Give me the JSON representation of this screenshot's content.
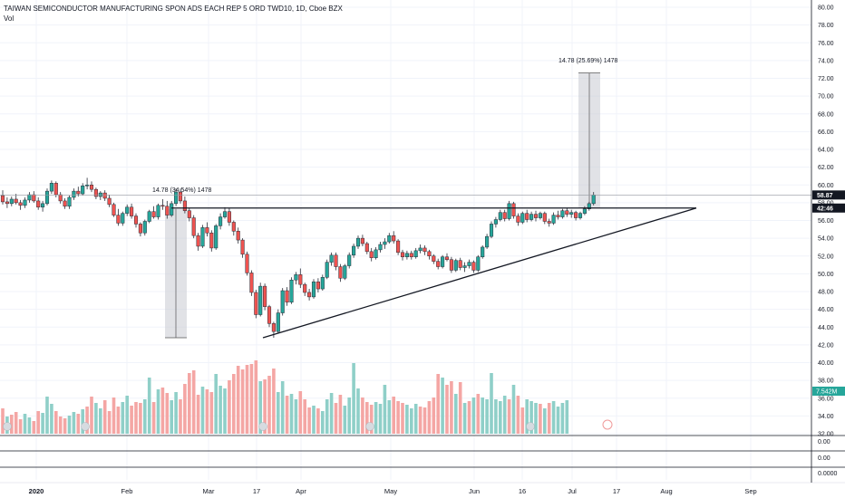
{
  "header": {
    "title": "TAIWAN SEMICONDUCTOR MANUFACTURING SPON ADS EACH REP 5 ORD TWD10, 1D, Cboe BZX",
    "vol_label": "Vol"
  },
  "colors": {
    "up": "#26a69a",
    "down": "#ef5350",
    "up_vol": "#8fcfc8",
    "down_vol": "#f4a6a4",
    "grid": "#f0f3fa",
    "box": "#c8cbd2",
    "dark": "#131722"
  },
  "chart_data": {
    "type": "candlestick",
    "title": "TAIWAN SEMICONDUCTOR MANUFACTURING SPON ADS EACH REP 5 ORD TWD10, 1D, Cboe BZX",
    "ylim": [
      32,
      81
    ],
    "y_ticks": [
      "80.00",
      "78.00",
      "76.00",
      "74.00",
      "72.00",
      "70.00",
      "68.00",
      "66.00",
      "64.00",
      "62.00",
      "60.00",
      "58.00",
      "56.00",
      "54.00",
      "52.00",
      "50.00",
      "48.00",
      "46.00",
      "44.00",
      "42.00",
      "40.00",
      "38.00",
      "36.00",
      "34.00",
      "32.00"
    ],
    "x_labels": [
      "2020",
      "Feb",
      "Mar",
      "17",
      "Apr",
      "May",
      "Jun",
      "16",
      "Jul",
      "17",
      "Aug",
      "Sep"
    ],
    "last_price": "58.87",
    "countdown": "42:46",
    "volume_label": "7.542M",
    "lower_panes": [
      "0.00",
      "0.00",
      "0.0000"
    ],
    "measure_left": "14.78 (34.54%) 1478",
    "measure_right": "14.78 (25.69%) 1478",
    "pattern": "ascending triangle",
    "resistance_level": 57.4,
    "support_from": 42.8,
    "ohlc": [
      [
        58.8,
        59.4,
        57.8,
        58.1
      ],
      [
        58.1,
        58.6,
        57.4,
        57.9
      ],
      [
        57.9,
        58.7,
        57.6,
        58.4
      ],
      [
        58.4,
        59.0,
        57.8,
        58.0
      ],
      [
        58.0,
        58.3,
        57.2,
        57.7
      ],
      [
        57.7,
        58.6,
        57.4,
        58.3
      ],
      [
        58.3,
        59.2,
        58.0,
        58.9
      ],
      [
        58.9,
        59.3,
        58.0,
        58.2
      ],
      [
        58.2,
        58.6,
        57.2,
        57.5
      ],
      [
        57.5,
        58.2,
        57.0,
        57.9
      ],
      [
        57.9,
        59.6,
        57.7,
        59.3
      ],
      [
        59.3,
        60.5,
        59.0,
        60.2
      ],
      [
        60.2,
        60.4,
        58.6,
        58.9
      ],
      [
        58.9,
        59.2,
        57.9,
        58.2
      ],
      [
        58.2,
        58.5,
        57.3,
        57.6
      ],
      [
        57.6,
        58.8,
        57.3,
        58.6
      ],
      [
        58.6,
        59.6,
        58.3,
        59.3
      ],
      [
        59.3,
        59.8,
        58.7,
        59.0
      ],
      [
        59.0,
        60.2,
        58.8,
        59.9
      ],
      [
        59.9,
        60.8,
        59.5,
        60.0
      ],
      [
        60.0,
        60.4,
        59.2,
        59.5
      ],
      [
        59.5,
        59.7,
        58.4,
        58.7
      ],
      [
        58.7,
        59.3,
        58.3,
        59.1
      ],
      [
        59.1,
        59.4,
        58.2,
        58.5
      ],
      [
        58.5,
        58.9,
        57.5,
        57.8
      ],
      [
        57.8,
        58.0,
        56.4,
        56.6
      ],
      [
        56.6,
        57.3,
        55.4,
        55.7
      ],
      [
        55.7,
        57.0,
        55.4,
        56.8
      ],
      [
        56.8,
        57.8,
        56.5,
        57.5
      ],
      [
        57.5,
        57.9,
        56.2,
        56.5
      ],
      [
        56.5,
        56.8,
        55.2,
        55.6
      ],
      [
        55.6,
        55.8,
        54.2,
        54.6
      ],
      [
        54.6,
        56.1,
        54.3,
        55.9
      ],
      [
        55.9,
        57.2,
        55.7,
        57.0
      ],
      [
        57.0,
        57.6,
        56.2,
        56.4
      ],
      [
        56.4,
        57.9,
        56.1,
        57.7
      ],
      [
        57.7,
        58.4,
        57.2,
        57.6
      ],
      [
        57.6,
        58.2,
        56.2,
        56.6
      ],
      [
        56.6,
        58.2,
        56.4,
        57.9
      ],
      [
        57.9,
        59.6,
        57.6,
        59.2
      ],
      [
        59.2,
        59.6,
        57.9,
        58.2
      ],
      [
        58.2,
        58.7,
        56.8,
        57.1
      ],
      [
        57.1,
        57.4,
        55.9,
        56.3
      ],
      [
        56.3,
        56.6,
        54.0,
        54.3
      ],
      [
        54.3,
        54.6,
        52.6,
        53.1
      ],
      [
        53.1,
        55.5,
        52.9,
        55.2
      ],
      [
        55.2,
        55.8,
        54.2,
        54.6
      ],
      [
        54.6,
        54.9,
        52.5,
        52.9
      ],
      [
        52.9,
        55.6,
        52.7,
        55.4
      ],
      [
        55.4,
        56.8,
        55.0,
        56.4
      ],
      [
        56.4,
        57.5,
        56.2,
        57.0
      ],
      [
        57.0,
        57.4,
        55.4,
        55.8
      ],
      [
        55.8,
        56.0,
        54.3,
        54.8
      ],
      [
        54.8,
        55.2,
        53.4,
        53.8
      ],
      [
        53.8,
        54.0,
        51.8,
        52.2
      ],
      [
        52.2,
        52.5,
        49.8,
        50.1
      ],
      [
        50.1,
        50.4,
        47.5,
        47.9
      ],
      [
        47.9,
        48.2,
        45.0,
        45.4
      ],
      [
        45.4,
        49.0,
        45.2,
        48.6
      ],
      [
        48.6,
        48.9,
        45.9,
        46.3
      ],
      [
        46.3,
        46.5,
        44.0,
        44.4
      ],
      [
        44.4,
        44.6,
        42.8,
        43.5
      ],
      [
        43.5,
        46.0,
        43.3,
        45.6
      ],
      [
        45.6,
        48.4,
        45.3,
        48.1
      ],
      [
        48.1,
        48.5,
        46.4,
        46.8
      ],
      [
        46.8,
        49.6,
        46.6,
        49.3
      ],
      [
        49.3,
        50.2,
        48.8,
        49.9
      ],
      [
        49.9,
        50.6,
        48.4,
        48.8
      ],
      [
        48.8,
        49.0,
        47.5,
        47.9
      ],
      [
        47.9,
        48.3,
        47.0,
        47.4
      ],
      [
        47.4,
        49.4,
        47.2,
        49.1
      ],
      [
        49.1,
        49.5,
        47.9,
        48.3
      ],
      [
        48.3,
        49.9,
        48.1,
        49.6
      ],
      [
        49.6,
        51.6,
        49.4,
        51.3
      ],
      [
        51.3,
        52.4,
        50.9,
        52.1
      ],
      [
        52.1,
        52.4,
        50.4,
        50.8
      ],
      [
        50.8,
        51.1,
        49.1,
        49.5
      ],
      [
        49.5,
        51.1,
        49.3,
        50.9
      ],
      [
        50.9,
        52.4,
        50.6,
        52.1
      ],
      [
        52.1,
        53.4,
        51.8,
        53.1
      ],
      [
        53.1,
        54.3,
        52.8,
        54.0
      ],
      [
        54.0,
        54.4,
        53.1,
        53.4
      ],
      [
        53.4,
        53.6,
        52.2,
        52.5
      ],
      [
        52.5,
        52.9,
        51.4,
        51.8
      ],
      [
        51.8,
        53.0,
        51.6,
        52.7
      ],
      [
        52.7,
        53.6,
        52.4,
        53.3
      ],
      [
        53.3,
        54.0,
        52.8,
        53.6
      ],
      [
        53.6,
        54.6,
        53.4,
        54.3
      ],
      [
        54.3,
        54.8,
        53.4,
        53.7
      ],
      [
        53.7,
        53.9,
        52.1,
        52.4
      ],
      [
        52.4,
        52.7,
        51.5,
        51.9
      ],
      [
        51.9,
        52.6,
        51.6,
        52.3
      ],
      [
        52.3,
        52.6,
        51.6,
        51.9
      ],
      [
        51.9,
        52.9,
        51.7,
        52.6
      ],
      [
        52.6,
        53.3,
        52.3,
        52.9
      ],
      [
        52.9,
        53.2,
        52.1,
        52.5
      ],
      [
        52.5,
        52.7,
        51.6,
        52.0
      ],
      [
        52.0,
        52.2,
        51.1,
        51.4
      ],
      [
        51.4,
        51.7,
        50.5,
        50.8
      ],
      [
        50.8,
        52.1,
        50.6,
        51.9
      ],
      [
        51.9,
        52.3,
        51.4,
        51.6
      ],
      [
        51.6,
        51.9,
        50.1,
        50.4
      ],
      [
        50.4,
        51.7,
        50.2,
        51.5
      ],
      [
        51.5,
        51.8,
        50.4,
        50.7
      ],
      [
        50.7,
        51.3,
        50.2,
        50.9
      ],
      [
        50.9,
        51.6,
        50.6,
        51.3
      ],
      [
        51.3,
        51.5,
        50.1,
        50.4
      ],
      [
        50.4,
        52.1,
        50.2,
        51.9
      ],
      [
        51.9,
        53.2,
        51.7,
        53.0
      ],
      [
        53.0,
        54.5,
        52.8,
        54.2
      ],
      [
        54.2,
        55.9,
        54.0,
        55.6
      ],
      [
        55.6,
        56.4,
        55.2,
        56.1
      ],
      [
        56.1,
        57.2,
        55.9,
        56.9
      ],
      [
        56.9,
        57.2,
        55.9,
        56.2
      ],
      [
        56.2,
        58.2,
        56.0,
        57.9
      ],
      [
        57.9,
        58.1,
        56.2,
        56.5
      ],
      [
        56.5,
        56.8,
        55.4,
        55.8
      ],
      [
        55.8,
        57.0,
        55.6,
        56.8
      ],
      [
        56.8,
        57.2,
        55.8,
        56.1
      ],
      [
        56.1,
        57.0,
        55.9,
        56.7
      ],
      [
        56.7,
        57.1,
        55.9,
        56.3
      ],
      [
        56.3,
        57.0,
        56.1,
        56.8
      ],
      [
        56.8,
        57.0,
        55.6,
        55.9
      ],
      [
        55.9,
        56.2,
        55.3,
        55.7
      ],
      [
        55.7,
        56.9,
        55.5,
        56.6
      ],
      [
        56.6,
        57.1,
        56.1,
        56.4
      ],
      [
        56.4,
        57.3,
        56.2,
        57.1
      ],
      [
        57.1,
        57.4,
        56.4,
        56.7
      ],
      [
        56.7,
        57.2,
        56.3,
        56.9
      ],
      [
        56.9,
        57.1,
        56.0,
        56.3
      ],
      [
        56.3,
        57.0,
        56.1,
        56.8
      ],
      [
        56.8,
        57.6,
        56.6,
        57.3
      ],
      [
        57.3,
        58.1,
        57.1,
        57.9
      ],
      [
        57.9,
        59.2,
        57.7,
        58.87
      ]
    ],
    "volume": [
      [
        28,
        0
      ],
      [
        19,
        1
      ],
      [
        21,
        0
      ],
      [
        24,
        0
      ],
      [
        16,
        0
      ],
      [
        22,
        1
      ],
      [
        18,
        1
      ],
      [
        14,
        0
      ],
      [
        25,
        0
      ],
      [
        23,
        1
      ],
      [
        41,
        1
      ],
      [
        33,
        1
      ],
      [
        25,
        0
      ],
      [
        19,
        0
      ],
      [
        17,
        0
      ],
      [
        20,
        1
      ],
      [
        24,
        1
      ],
      [
        22,
        0
      ],
      [
        27,
        1
      ],
      [
        30,
        0
      ],
      [
        41,
        0
      ],
      [
        34,
        1
      ],
      [
        28,
        1
      ],
      [
        37,
        0
      ],
      [
        25,
        0
      ],
      [
        40,
        0
      ],
      [
        30,
        0
      ],
      [
        35,
        1
      ],
      [
        42,
        1
      ],
      [
        31,
        0
      ],
      [
        35,
        0
      ],
      [
        34,
        0
      ],
      [
        38,
        1
      ],
      [
        62,
        1
      ],
      [
        35,
        0
      ],
      [
        49,
        1
      ],
      [
        51,
        0
      ],
      [
        45,
        0
      ],
      [
        37,
        1
      ],
      [
        46,
        1
      ],
      [
        38,
        0
      ],
      [
        55,
        0
      ],
      [
        67,
        0
      ],
      [
        70,
        0
      ],
      [
        43,
        0
      ],
      [
        52,
        1
      ],
      [
        49,
        0
      ],
      [
        46,
        0
      ],
      [
        66,
        1
      ],
      [
        53,
        1
      ],
      [
        50,
        1
      ],
      [
        59,
        0
      ],
      [
        66,
        0
      ],
      [
        75,
        0
      ],
      [
        71,
        0
      ],
      [
        76,
        0
      ],
      [
        77,
        0
      ],
      [
        81,
        0
      ],
      [
        58,
        1
      ],
      [
        60,
        0
      ],
      [
        64,
        0
      ],
      [
        72,
        0
      ],
      [
        46,
        1
      ],
      [
        58,
        1
      ],
      [
        42,
        0
      ],
      [
        44,
        1
      ],
      [
        38,
        1
      ],
      [
        47,
        0
      ],
      [
        38,
        0
      ],
      [
        29,
        0
      ],
      [
        31,
        1
      ],
      [
        28,
        0
      ],
      [
        25,
        1
      ],
      [
        38,
        1
      ],
      [
        45,
        1
      ],
      [
        34,
        0
      ],
      [
        43,
        0
      ],
      [
        31,
        1
      ],
      [
        40,
        1
      ],
      [
        78,
        1
      ],
      [
        50,
        1
      ],
      [
        40,
        0
      ],
      [
        35,
        0
      ],
      [
        32,
        0
      ],
      [
        35,
        1
      ],
      [
        33,
        1
      ],
      [
        54,
        1
      ],
      [
        37,
        1
      ],
      [
        41,
        0
      ],
      [
        36,
        0
      ],
      [
        34,
        0
      ],
      [
        32,
        1
      ],
      [
        28,
        1
      ],
      [
        33,
        1
      ],
      [
        30,
        0
      ],
      [
        29,
        0
      ],
      [
        36,
        0
      ],
      [
        40,
        0
      ],
      [
        66,
        0
      ],
      [
        62,
        1
      ],
      [
        54,
        0
      ],
      [
        58,
        0
      ],
      [
        44,
        1
      ],
      [
        57,
        0
      ],
      [
        34,
        1
      ],
      [
        36,
        0
      ],
      [
        40,
        1
      ],
      [
        44,
        0
      ],
      [
        40,
        1
      ],
      [
        38,
        1
      ],
      [
        67,
        1
      ],
      [
        38,
        1
      ],
      [
        36,
        1
      ],
      [
        42,
        1
      ],
      [
        38,
        0
      ],
      [
        54,
        1
      ],
      [
        42,
        0
      ],
      [
        29,
        0
      ],
      [
        38,
        1
      ],
      [
        36,
        1
      ],
      [
        34,
        1
      ],
      [
        33,
        0
      ],
      [
        28,
        1
      ],
      [
        34,
        0
      ],
      [
        36,
        1
      ],
      [
        30,
        1
      ],
      [
        34,
        1
      ],
      [
        37,
        1
      ]
    ]
  }
}
